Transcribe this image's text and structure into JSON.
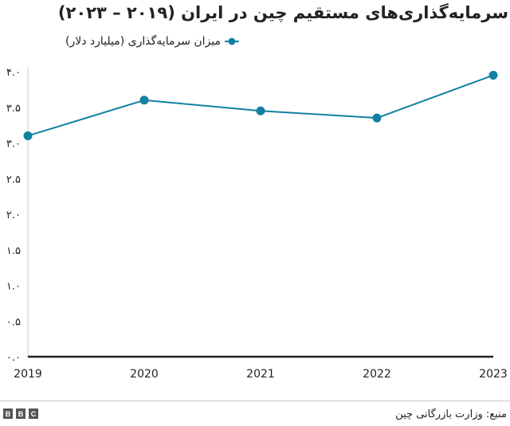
{
  "title": "سرمایه‌گذاری‌های مستقیم چین در ایران (۲۰۱۹ – ۲۰۲۳)",
  "legend": {
    "label": "میزان سرمایه‌گذاری (میلیارد دلار)",
    "marker_icon": "line-with-dot-icon"
  },
  "footer": {
    "logo": [
      "B",
      "B",
      "C"
    ],
    "source": "منبع: وزارت بازرگانی چین"
  },
  "colors": {
    "series": "#1380A1",
    "axis_baseline": "#222222",
    "axis_vertical": "#cccccc",
    "text": "#222222",
    "logo_bg": "#555555"
  },
  "chart_data": {
    "type": "line",
    "title": "سرمایه‌گذاری‌های مستقیم چین در ایران (۲۰۱۹ – ۲۰۲۳)",
    "xlabel": "",
    "ylabel": "",
    "categories": [
      "2019",
      "2020",
      "2021",
      "2022",
      "2023"
    ],
    "series": [
      {
        "name": "میزان سرمایه‌گذاری (میلیارد دلار)",
        "values": [
          3.1,
          3.6,
          3.45,
          3.35,
          3.95
        ]
      }
    ],
    "ylim": [
      0,
      4.0
    ],
    "ytick_values": [
      4.0,
      3.5,
      3.0,
      2.5,
      2.0,
      1.5,
      1.0,
      0.5,
      0.0
    ],
    "ytick_labels": [
      "۴.۰",
      "۳.۵",
      "۳.۰",
      "۲.۵",
      "۲.۰",
      "۱.۵",
      "۱.۰",
      "۰.۵",
      "۰.۰"
    ],
    "grid": false,
    "legend_position": "top",
    "source": "منبع: وزارت بازرگانی چین"
  }
}
